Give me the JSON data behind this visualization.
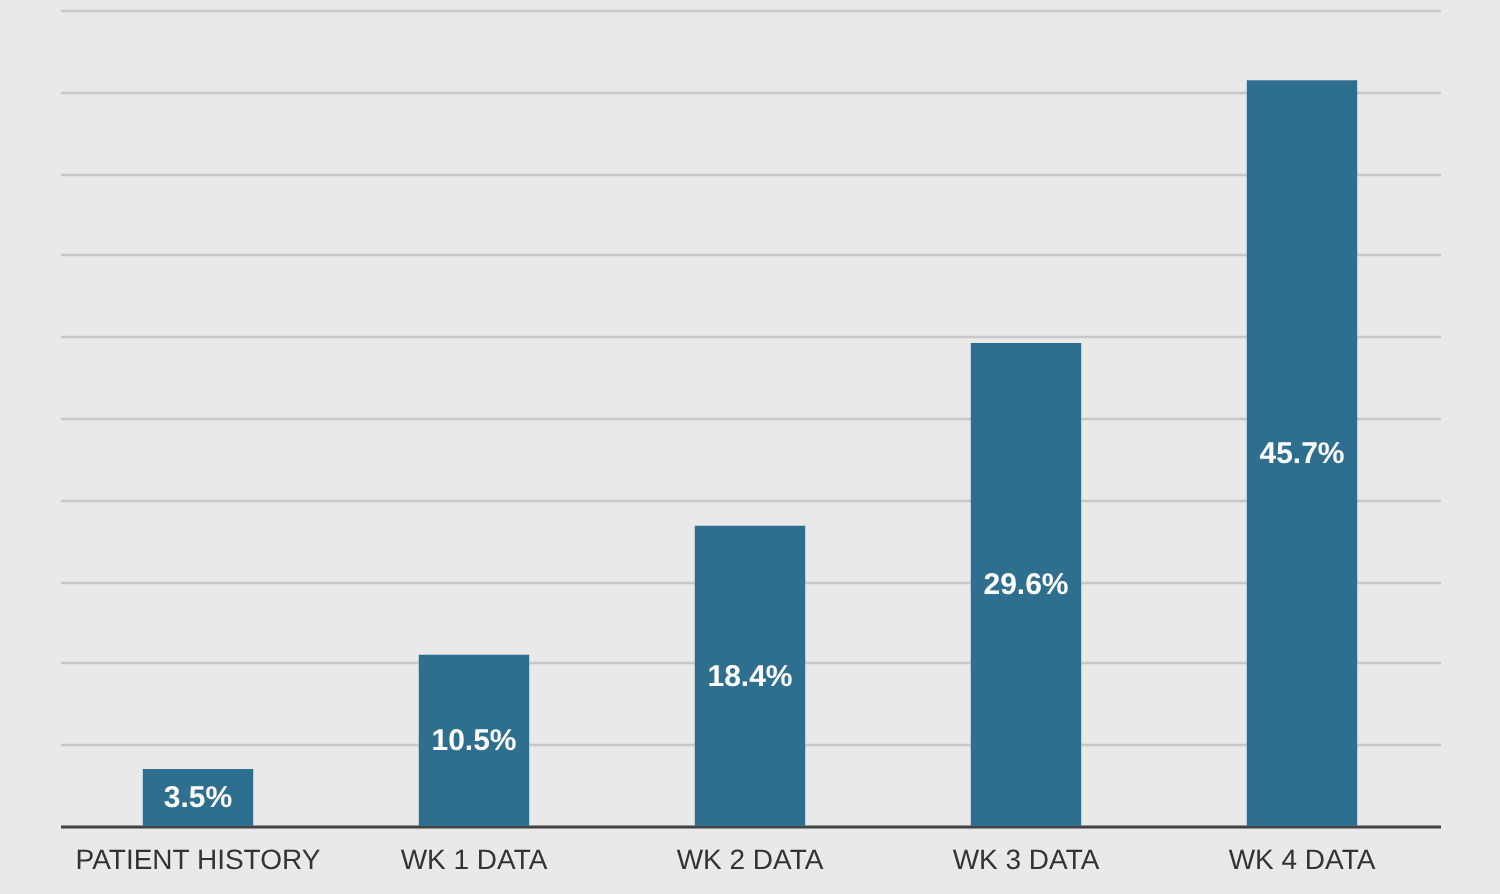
{
  "chart_data": {
    "type": "bar",
    "categories": [
      "PATIENT HISTORY",
      "WK 1 DATA",
      "WK 2 DATA",
      "WK 3 DATA",
      "WK 4 DATA"
    ],
    "values": [
      3.5,
      10.5,
      18.4,
      29.6,
      45.7
    ],
    "value_labels": [
      "3.5%",
      "10.5%",
      "18.4%",
      "29.6%",
      "45.7%"
    ],
    "color": "#2e6e8e",
    "ylim": [
      0,
      50
    ],
    "yticks": [
      {
        "value": 0,
        "label": null
      },
      {
        "value": 5,
        "label": null
      },
      {
        "value": 10,
        "label": null
      },
      {
        "value": 15,
        "label": null
      },
      {
        "value": 20,
        "label": null
      },
      {
        "value": 25,
        "label": null
      },
      {
        "value": 30,
        "label": null
      },
      {
        "value": 35,
        "label": null
      },
      {
        "value": 40,
        "label": null
      },
      {
        "value": 45,
        "label": null
      },
      {
        "value": 50,
        "label": null
      }
    ],
    "grid": "y",
    "tick_labels": "x"
  }
}
